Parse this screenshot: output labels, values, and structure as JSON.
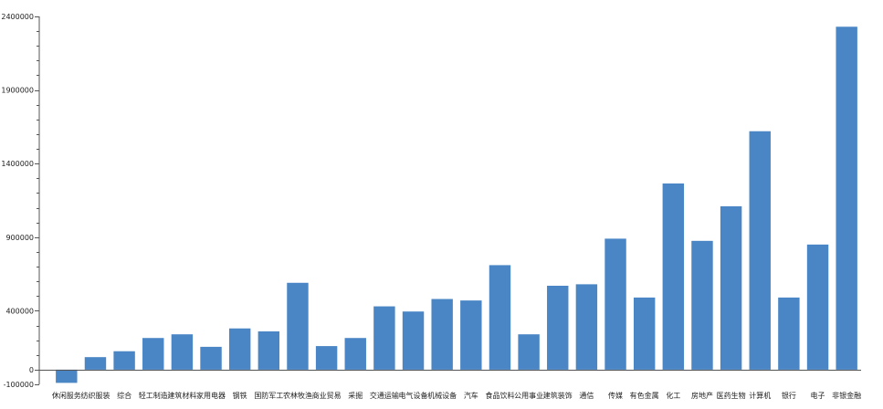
{
  "chart_data": {
    "type": "bar",
    "title": "",
    "xlabel": "",
    "ylabel": "",
    "ylim": [
      -100000,
      2400000
    ],
    "yticks": [
      -100000,
      0,
      400000,
      900000,
      1400000,
      1900000,
      2400000
    ],
    "ytick_labels": [
      "-100000",
      "0",
      "400000",
      "900000",
      "1400000",
      "1900000",
      "2400000"
    ],
    "grid": false,
    "bar_color": "#4a86c5",
    "categories": [
      "休闲服务",
      "纺织服装",
      "综合",
      "轻工制造",
      "建筑材料",
      "家用电器",
      "钢铁",
      "国防军工",
      "农林牧渔",
      "商业贸易",
      "采掘",
      "交通运输",
      "电气设备",
      "机械设备",
      "汽车",
      "食品饮料",
      "公用事业",
      "建筑装饰",
      "通信",
      "传媒",
      "有色金属",
      "化工",
      "房地产",
      "医药生物",
      "计算机",
      "银行",
      "电子",
      "非银金融"
    ],
    "values": [
      -90000,
      85000,
      125000,
      215000,
      240000,
      155000,
      280000,
      260000,
      590000,
      160000,
      215000,
      430000,
      395000,
      480000,
      470000,
      710000,
      240000,
      570000,
      580000,
      890000,
      490000,
      1265000,
      875000,
      1110000,
      1620000,
      490000,
      850000,
      2330000
    ]
  }
}
